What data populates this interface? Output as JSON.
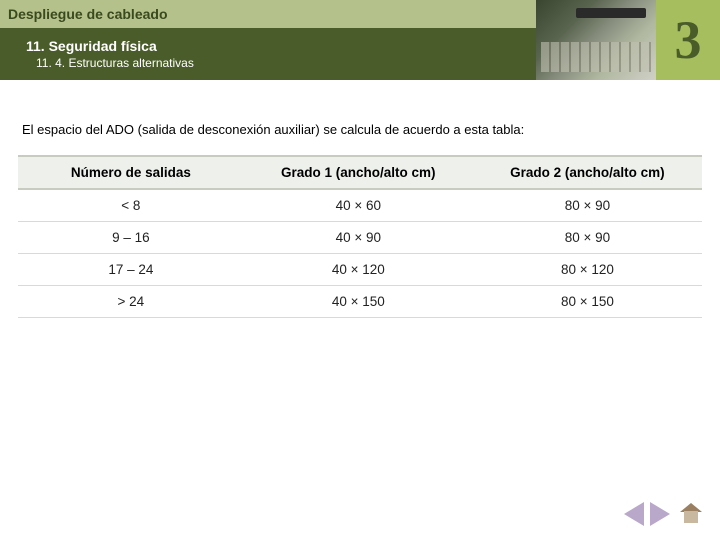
{
  "header": {
    "title": "Despliegue de cableado",
    "section": "11. Seguridad física",
    "subsection": "11. 4. Estructuras alternativas",
    "chapter_number": "3"
  },
  "intro": "El espacio del ADO (salida de desconexión auxiliar) se calcula de acuerdo a esta tabla:",
  "table": {
    "columns": [
      "Número de salidas",
      "Grado 1 (ancho/alto cm)",
      "Grado 2 (ancho/alto cm)"
    ],
    "rows": [
      [
        "< 8",
        "40 × 60",
        "80 × 90"
      ],
      [
        "9 – 16",
        "40 × 90",
        "80 × 90"
      ],
      [
        "17 – 24",
        "40 × 120",
        "80 × 120"
      ],
      [
        "> 24",
        "40 × 150",
        "80 × 150"
      ]
    ]
  },
  "colors": {
    "header_bg": "#b5c18a",
    "subheader_bg": "#4a5c2a",
    "chapter_bg": "#a6be5e",
    "table_header_bg": "#eef0eb",
    "table_border": "#c8ccc0",
    "nav_arrow": "#b9a8c9"
  }
}
